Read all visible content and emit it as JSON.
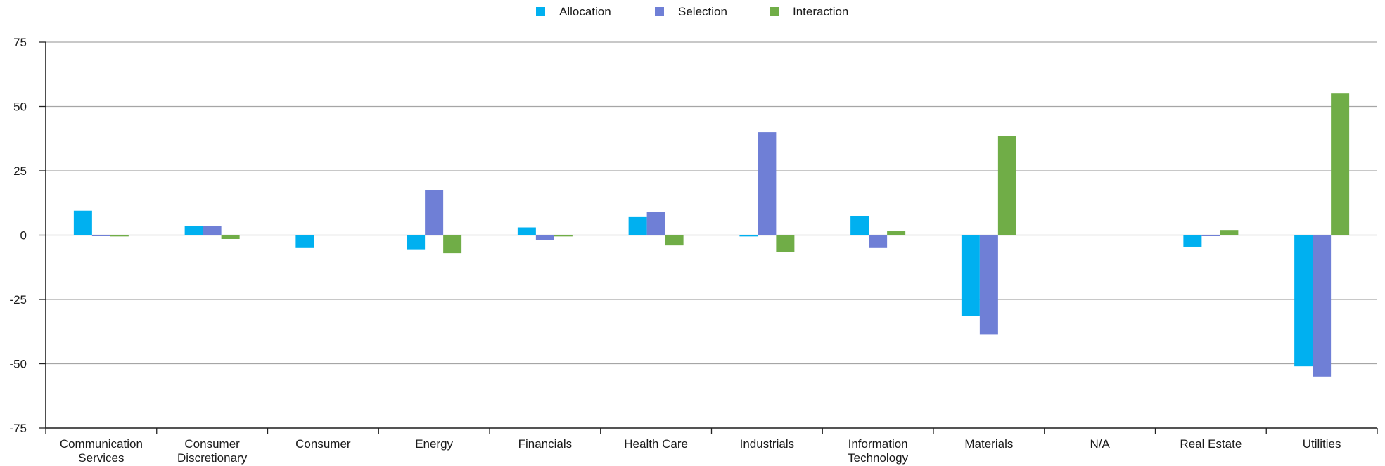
{
  "chart_data": {
    "type": "bar",
    "title": "",
    "xlabel": "",
    "ylabel": "",
    "ylim": [
      -75,
      75
    ],
    "yticks": [
      75,
      50,
      25,
      0,
      -25,
      -50,
      -75
    ],
    "ytick_labels": [
      "75",
      "50",
      "25",
      "0",
      "-25",
      "-50",
      "-75"
    ],
    "grid": true,
    "legend_position": "top-center",
    "categories": [
      [
        "Communication",
        "Services"
      ],
      [
        "Consumer",
        "Discretionary"
      ],
      [
        "Consumer"
      ],
      [
        "Energy"
      ],
      [
        "Financials"
      ],
      [
        "Health Care"
      ],
      [
        "Industrials"
      ],
      [
        "Information",
        "Technology"
      ],
      [
        "Materials"
      ],
      [
        "N/A"
      ],
      [
        "Real Estate"
      ],
      [
        "Utilities"
      ]
    ],
    "series": [
      {
        "name": "Allocation",
        "color": "#00b0f0",
        "values": [
          9.5,
          3.5,
          -5,
          -5.5,
          3,
          7,
          -0.5,
          7.5,
          -31.5,
          0,
          -4.5,
          -51
        ]
      },
      {
        "name": "Selection",
        "color": "#6f7fd6",
        "values": [
          -0.3,
          3.5,
          0,
          17.5,
          -2,
          9,
          40,
          -5,
          -38.5,
          0,
          -0.3,
          -55
        ]
      },
      {
        "name": "Interaction",
        "color": "#70ad47",
        "values": [
          -0.5,
          -1.5,
          0,
          -7,
          -0.5,
          -4,
          -6.5,
          1.5,
          38.5,
          0,
          2,
          55
        ]
      }
    ]
  }
}
